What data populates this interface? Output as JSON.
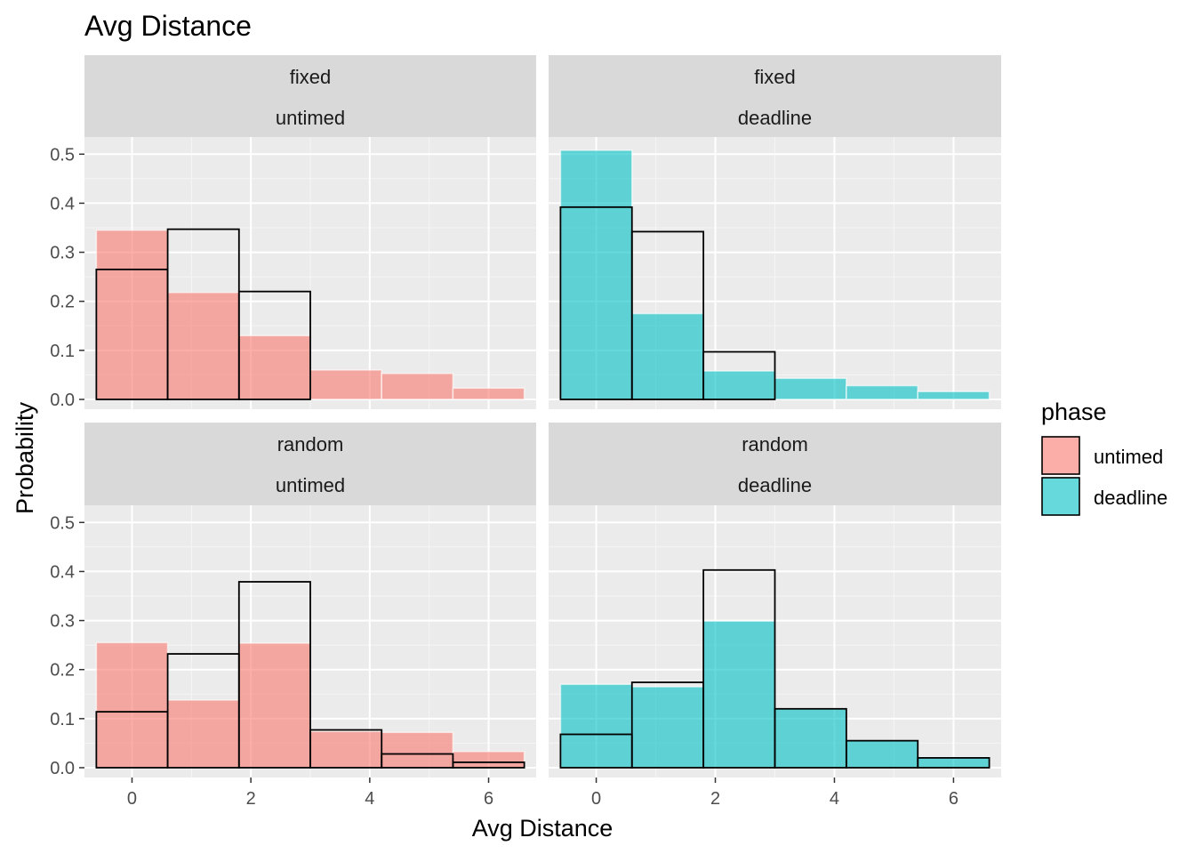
{
  "chart_data": {
    "type": "bar",
    "title": "Avg Distance",
    "xlabel": "Avg Distance",
    "ylabel": "Probability",
    "x_ticks": [
      0,
      2,
      4,
      6
    ],
    "y_ticks": [
      "0.0",
      "0.1",
      "0.2",
      "0.3",
      "0.4",
      "0.5"
    ],
    "xlim": [
      -0.8,
      6.8
    ],
    "ylim": [
      -0.02,
      0.535
    ],
    "bins": [
      {
        "x0": -0.6,
        "x1": 0.6
      },
      {
        "x0": 0.6,
        "x1": 1.8
      },
      {
        "x0": 1.8,
        "x1": 3.0
      },
      {
        "x0": 3.0,
        "x1": 4.2
      },
      {
        "x0": 4.2,
        "x1": 5.4
      },
      {
        "x0": 5.4,
        "x1": 6.6
      }
    ],
    "legend": {
      "title": "phase",
      "position": "right",
      "items": [
        {
          "label": "untimed",
          "color": "#f8766d"
        },
        {
          "label": "deadline",
          "color": "#00bfc4"
        }
      ]
    },
    "panels": [
      {
        "strip_top": "fixed",
        "strip_bottom": "untimed",
        "fill_color": "#f8766d",
        "filled": [
          0.345,
          0.218,
          0.13,
          0.06,
          0.053,
          0.023
        ],
        "outline": [
          0.265,
          0.347,
          0.22,
          0.0,
          0.0,
          0.0
        ]
      },
      {
        "strip_top": "fixed",
        "strip_bottom": "deadline",
        "fill_color": "#00bfc4",
        "filled": [
          0.508,
          0.175,
          0.058,
          0.043,
          0.028,
          0.016
        ],
        "outline": [
          0.392,
          0.342,
          0.097,
          0.0,
          0.0,
          0.0
        ]
      },
      {
        "strip_top": "random",
        "strip_bottom": "untimed",
        "fill_color": "#f8766d",
        "filled": [
          0.255,
          0.138,
          0.254,
          0.074,
          0.072,
          0.033
        ],
        "outline": [
          0.114,
          0.232,
          0.379,
          0.077,
          0.028,
          0.011
        ]
      },
      {
        "strip_top": "random",
        "strip_bottom": "deadline",
        "fill_color": "#00bfc4",
        "filled": [
          0.17,
          0.165,
          0.299,
          0.12,
          0.055,
          0.022
        ],
        "outline": [
          0.068,
          0.174,
          0.403,
          0.12,
          0.055,
          0.02
        ]
      }
    ]
  }
}
